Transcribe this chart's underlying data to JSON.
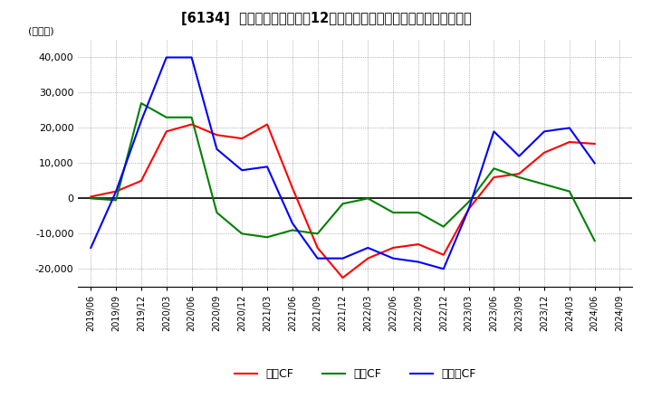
{
  "title": "[6134]  キャッシュフローの12か月移動合計の対前年同期増減額の推移",
  "ylabel": "(百万円)",
  "ylim": [
    -25000,
    45000
  ],
  "yticks": [
    -20000,
    -10000,
    0,
    10000,
    20000,
    30000,
    40000
  ],
  "legend_labels": [
    "営業CF",
    "投資CF",
    "フリーCF"
  ],
  "line_colors": [
    "#ff0000",
    "#008000",
    "#0000ff"
  ],
  "dates": [
    "2019/06",
    "2019/09",
    "2019/12",
    "2020/03",
    "2020/06",
    "2020/09",
    "2020/12",
    "2021/03",
    "2021/06",
    "2021/09",
    "2021/12",
    "2022/03",
    "2022/06",
    "2022/09",
    "2022/12",
    "2023/03",
    "2023/06",
    "2023/09",
    "2023/12",
    "2024/03",
    "2024/06",
    "2024/09"
  ],
  "operating_cf": [
    500,
    2000,
    5000,
    19000,
    21000,
    18000,
    17000,
    21000,
    3000,
    -14000,
    -22500,
    -17000,
    -14000,
    -13000,
    -16000,
    -3000,
    6000,
    7000,
    13000,
    16000,
    15500,
    null
  ],
  "investing_cf": [
    0,
    -500,
    27000,
    23000,
    23000,
    -4000,
    -10000,
    -11000,
    -9000,
    -10000,
    -1500,
    0,
    -4000,
    -4000,
    -8000,
    -1000,
    8500,
    6000,
    4000,
    2000,
    -12000,
    null
  ],
  "free_cf": [
    -14000,
    2000,
    22000,
    40000,
    40000,
    14000,
    8000,
    9000,
    -7000,
    -17000,
    -17000,
    -14000,
    -17000,
    -18000,
    -20000,
    -3000,
    19000,
    12000,
    19000,
    20000,
    10000,
    null
  ]
}
